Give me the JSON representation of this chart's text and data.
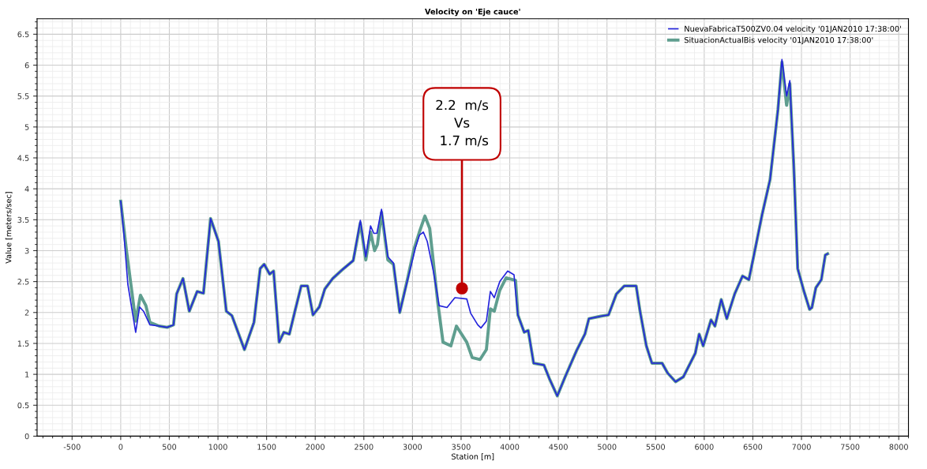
{
  "chart_data": {
    "type": "line",
    "title": "Velocity on 'Eje cauce'",
    "xlabel": "Station [m]",
    "ylabel": "Value [meters/sec]",
    "xlim": [
      -860,
      8100
    ],
    "ylim": [
      0,
      6.75
    ],
    "xticks": [
      -500,
      0,
      500,
      1000,
      1500,
      2000,
      2500,
      3000,
      3500,
      4000,
      4500,
      5000,
      5500,
      6000,
      6500,
      7000,
      7500,
      8000
    ],
    "yticks": [
      0,
      0.5,
      1,
      1.5,
      2,
      2.5,
      3,
      3.5,
      4,
      4.5,
      5,
      5.5,
      6,
      6.5
    ],
    "grid": true,
    "legend": "top right",
    "marker": "none",
    "line_style": "solid",
    "annotations": [
      {
        "text": "2.2  m/s\nVs\n 1.7 m/s",
        "x": 3509,
        "y": 2.39
      }
    ],
    "series": [
      {
        "name": "NuevaFabricaT500ZV0.04 velocity '01JAN2010 17:38:00'",
        "color": "#2424dc",
        "x": [
          0,
          32,
          73,
          154,
          194,
          235,
          300,
          397,
          478,
          543,
          575,
          640,
          705,
          786,
          851,
          924,
          1005,
          1086,
          1143,
          1272,
          1370,
          1434,
          1475,
          1532,
          1572,
          1629,
          1677,
          1734,
          1791,
          1856,
          1921,
          1977,
          2042,
          2099,
          2180,
          2277,
          2391,
          2464,
          2520,
          2569,
          2602,
          2634,
          2682,
          2747,
          2804,
          2869,
          2950,
          3031,
          3071,
          3112,
          3152,
          3217,
          3274,
          3355,
          3436,
          3558,
          3598,
          3671,
          3704,
          3760,
          3801,
          3841,
          3898,
          3979,
          4044,
          4084,
          4149,
          4190,
          4246,
          4352,
          4408,
          4489,
          4570,
          4692,
          4773,
          4814,
          4935,
          5016,
          5097,
          5178,
          5300,
          5340,
          5405,
          5462,
          5567,
          5624,
          5705,
          5786,
          5908,
          5948,
          5989,
          6070,
          6110,
          6175,
          6232,
          6313,
          6394,
          6459,
          6515,
          6596,
          6677,
          6758,
          6799,
          6847,
          6880,
          6920,
          6961,
          7026,
          7083,
          7107,
          7148,
          7204,
          7245,
          7269
        ],
        "values": [
          3.8,
          3.28,
          2.46,
          1.68,
          2.09,
          2.02,
          1.8,
          1.78,
          1.76,
          1.8,
          2.3,
          2.55,
          2.02,
          2.34,
          2.31,
          3.52,
          3.15,
          2.02,
          1.95,
          1.4,
          1.84,
          2.71,
          2.78,
          2.62,
          2.67,
          1.52,
          1.68,
          1.65,
          2.02,
          2.43,
          2.43,
          1.96,
          2.09,
          2.38,
          2.55,
          2.69,
          2.84,
          3.49,
          2.9,
          3.4,
          3.28,
          3.28,
          3.67,
          2.9,
          2.8,
          2.0,
          2.53,
          3.05,
          3.25,
          3.3,
          3.15,
          2.65,
          2.11,
          2.08,
          2.24,
          2.22,
          1.99,
          1.8,
          1.75,
          1.86,
          2.34,
          2.24,
          2.5,
          2.67,
          2.61,
          1.96,
          1.68,
          1.71,
          1.18,
          1.15,
          0.93,
          0.65,
          0.96,
          1.4,
          1.65,
          1.9,
          1.94,
          1.96,
          2.3,
          2.43,
          2.43,
          2.02,
          1.46,
          1.18,
          1.18,
          1.02,
          0.88,
          0.96,
          1.34,
          1.65,
          1.46,
          1.88,
          1.78,
          2.21,
          1.9,
          2.3,
          2.59,
          2.53,
          2.96,
          3.59,
          4.15,
          5.28,
          6.09,
          5.5,
          5.75,
          4.4,
          2.71,
          2.34,
          2.05,
          2.08,
          2.4,
          2.53,
          2.93,
          2.95
        ]
      },
      {
        "name": "SituacionActualBis velocity '01JAN2010 17:38:00'",
        "color": "#5f9e8f",
        "x": [
          0,
          57,
          154,
          203,
          259,
          300,
          397,
          478,
          543,
          575,
          640,
          705,
          786,
          851,
          924,
          1005,
          1086,
          1143,
          1272,
          1370,
          1434,
          1475,
          1532,
          1572,
          1629,
          1677,
          1734,
          1791,
          1856,
          1921,
          1977,
          2042,
          2099,
          2180,
          2277,
          2391,
          2464,
          2520,
          2569,
          2610,
          2640,
          2682,
          2747,
          2804,
          2869,
          2950,
          3015,
          3071,
          3128,
          3177,
          3258,
          3314,
          3395,
          3452,
          3558,
          3614,
          3695,
          3760,
          3801,
          3841,
          3898,
          3963,
          4060,
          4084,
          4149,
          4190,
          4246,
          4352,
          4408,
          4489,
          4570,
          4692,
          4773,
          4814,
          4935,
          5016,
          5097,
          5178,
          5300,
          5340,
          5405,
          5462,
          5567,
          5624,
          5705,
          5786,
          5908,
          5948,
          5989,
          6070,
          6110,
          6175,
          6232,
          6313,
          6394,
          6459,
          6515,
          6596,
          6677,
          6758,
          6799,
          6847,
          6880,
          6920,
          6961,
          7026,
          7083,
          7107,
          7148,
          7204,
          7245,
          7269
        ],
        "values": [
          3.8,
          3.03,
          1.86,
          2.28,
          2.11,
          1.84,
          1.78,
          1.76,
          1.8,
          2.3,
          2.55,
          2.02,
          2.34,
          2.31,
          3.52,
          3.15,
          2.02,
          1.95,
          1.4,
          1.84,
          2.71,
          2.78,
          2.62,
          2.67,
          1.52,
          1.68,
          1.65,
          2.02,
          2.43,
          2.43,
          1.96,
          2.09,
          2.38,
          2.55,
          2.69,
          2.84,
          3.45,
          2.85,
          3.3,
          3.0,
          3.1,
          3.62,
          2.85,
          2.78,
          2.0,
          2.55,
          3.02,
          3.3,
          3.56,
          3.36,
          2.19,
          1.52,
          1.46,
          1.78,
          1.52,
          1.27,
          1.24,
          1.4,
          2.06,
          2.02,
          2.36,
          2.56,
          2.52,
          1.96,
          1.68,
          1.71,
          1.18,
          1.15,
          0.93,
          0.65,
          0.96,
          1.4,
          1.65,
          1.9,
          1.94,
          1.96,
          2.3,
          2.43,
          2.43,
          2.02,
          1.46,
          1.18,
          1.18,
          1.02,
          0.88,
          0.96,
          1.34,
          1.65,
          1.46,
          1.88,
          1.78,
          2.21,
          1.9,
          2.3,
          2.59,
          2.53,
          2.96,
          3.59,
          4.15,
          5.28,
          6.05,
          5.35,
          5.7,
          4.4,
          2.71,
          2.34,
          2.05,
          2.08,
          2.4,
          2.53,
          2.93,
          2.95
        ]
      }
    ]
  }
}
